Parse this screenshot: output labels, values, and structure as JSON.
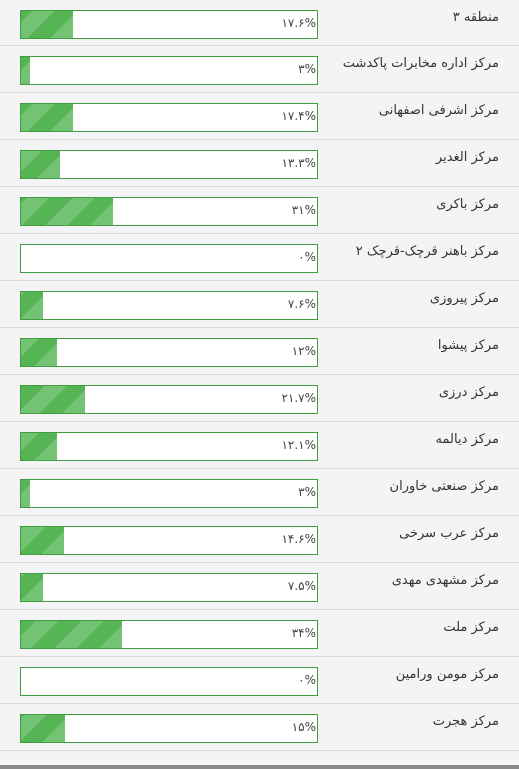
{
  "items": [
    {
      "label": "منطقه ۳",
      "pct_text": "۱۷.۶%",
      "percent": 17.6
    },
    {
      "label": "مرکز اداره مخابرات پاکدشت",
      "pct_text": "۳%",
      "percent": 3
    },
    {
      "label": "مرکز اشرفی اصفهانی",
      "pct_text": "۱۷.۴%",
      "percent": 17.4
    },
    {
      "label": "مرکز الغدیر",
      "pct_text": "۱۳.۳%",
      "percent": 13.3
    },
    {
      "label": "مرکز باکری",
      "pct_text": "۳۱%",
      "percent": 31
    },
    {
      "label": "مرکز باهنر قرچک-قرچک ۲",
      "pct_text": "۰%",
      "percent": 0
    },
    {
      "label": "مرکز پیروزی",
      "pct_text": "۷.۶%",
      "percent": 7.6
    },
    {
      "label": "مرکز پیشوا",
      "pct_text": "۱۲%",
      "percent": 12
    },
    {
      "label": "مرکز درزی",
      "pct_text": "۲۱.۷%",
      "percent": 21.7
    },
    {
      "label": "مرکز دیالمه",
      "pct_text": "۱۲.۱%",
      "percent": 12.1
    },
    {
      "label": "مرکز صنعتی خاوران",
      "pct_text": "۳%",
      "percent": 3
    },
    {
      "label": "مرکز عرب سرخی",
      "pct_text": "۱۴.۶%",
      "percent": 14.6
    },
    {
      "label": "مرکز مشهدی مهدی",
      "pct_text": "۷.۵%",
      "percent": 7.5
    },
    {
      "label": "مرکز ملت",
      "pct_text": "۳۴%",
      "percent": 34
    },
    {
      "label": "مرکز مومن ورامین",
      "pct_text": "۰%",
      "percent": 0
    },
    {
      "label": "مرکز هجرت",
      "pct_text": "۱۵%",
      "percent": 15
    }
  ],
  "colors": {
    "fill": "#55b555",
    "border": "#3f9f3f"
  }
}
